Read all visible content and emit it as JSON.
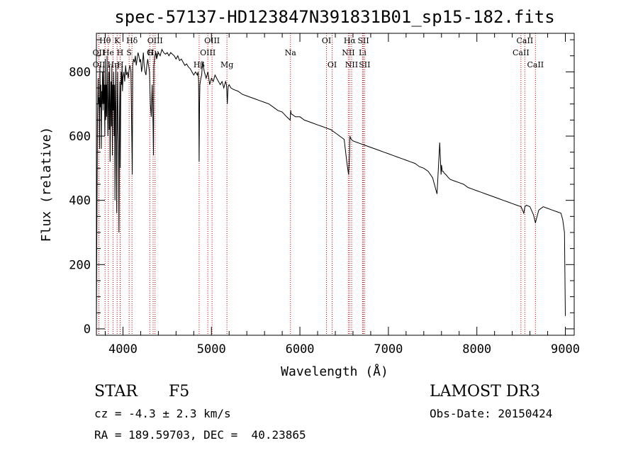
{
  "chart_data": {
    "type": "line",
    "title": "spec-57137-HD123847N391831B01_sp15-182.fits",
    "xlabel": "Wavelength (Å)",
    "ylabel": "Flux (relative)",
    "xlim": [
      3700,
      9100
    ],
    "ylim": [
      -20,
      920
    ],
    "xticks": [
      4000,
      5000,
      6000,
      7000,
      8000,
      9000
    ],
    "yticks": [
      0,
      200,
      400,
      600,
      800
    ],
    "series": [
      {
        "name": "flux",
        "x": [
          3700,
          3705,
          3712,
          3720,
          3725,
          3730,
          3735,
          3740,
          3745,
          3750,
          3755,
          3760,
          3765,
          3770,
          3775,
          3780,
          3785,
          3790,
          3795,
          3800,
          3805,
          3810,
          3815,
          3820,
          3825,
          3830,
          3835,
          3840,
          3845,
          3850,
          3855,
          3860,
          3865,
          3870,
          3875,
          3880,
          3885,
          3890,
          3895,
          3900,
          3905,
          3910,
          3915,
          3920,
          3925,
          3930,
          3935,
          3940,
          3945,
          3950,
          3955,
          3960,
          3965,
          3970,
          3975,
          3980,
          3985,
          3990,
          3995,
          4000,
          4010,
          4020,
          4030,
          4040,
          4050,
          4060,
          4070,
          4080,
          4090,
          4100,
          4105,
          4110,
          4120,
          4130,
          4140,
          4150,
          4160,
          4170,
          4180,
          4190,
          4200,
          4210,
          4220,
          4230,
          4240,
          4250,
          4260,
          4270,
          4280,
          4290,
          4300,
          4310,
          4320,
          4330,
          4340,
          4345,
          4350,
          4360,
          4370,
          4380,
          4400,
          4420,
          4440,
          4460,
          4480,
          4500,
          4520,
          4540,
          4560,
          4580,
          4600,
          4620,
          4640,
          4660,
          4680,
          4700,
          4720,
          4740,
          4760,
          4780,
          4800,
          4820,
          4840,
          4850,
          4855,
          4861,
          4866,
          4870,
          4880,
          4890,
          4900,
          4920,
          4940,
          4960,
          4980,
          5000,
          5020,
          5040,
          5060,
          5080,
          5100,
          5120,
          5140,
          5160,
          5170,
          5175,
          5180,
          5185,
          5190,
          5200,
          5220,
          5250,
          5300,
          5350,
          5400,
          5450,
          5500,
          5550,
          5600,
          5650,
          5700,
          5750,
          5800,
          5850,
          5890,
          5893,
          5896,
          5900,
          5950,
          6000,
          6050,
          6100,
          6150,
          6200,
          6250,
          6300,
          6350,
          6400,
          6450,
          6500,
          6530,
          6550,
          6560,
          6563,
          6566,
          6570,
          6580,
          6600,
          6650,
          6700,
          6750,
          6800,
          6850,
          6900,
          6950,
          7000,
          7050,
          7100,
          7150,
          7200,
          7250,
          7300,
          7350,
          7400,
          7450,
          7500,
          7550,
          7580,
          7595,
          7600,
          7605,
          7610,
          7620,
          7630,
          7650,
          7680,
          7700,
          7750,
          7800,
          7850,
          7900,
          7950,
          8000,
          8050,
          8100,
          8150,
          8200,
          8250,
          8300,
          8350,
          8400,
          8450,
          8500,
          8530,
          8542,
          8560,
          8600,
          8640,
          8662,
          8680,
          8700,
          8750,
          8800,
          8850,
          8900,
          8950,
          8970,
          8990,
          9000
        ],
        "y": [
          0,
          300,
          650,
          780,
          700,
          720,
          560,
          820,
          690,
          760,
          560,
          740,
          700,
          800,
          680,
          820,
          700,
          760,
          600,
          840,
          650,
          760,
          660,
          850,
          720,
          600,
          700,
          800,
          620,
          820,
          520,
          700,
          770,
          630,
          820,
          540,
          760,
          680,
          800,
          600,
          760,
          400,
          700,
          820,
          540,
          360,
          660,
          800,
          620,
          580,
          300,
          650,
          770,
          500,
          720,
          800,
          760,
          820,
          740,
          780,
          800,
          770,
          820,
          790,
          800,
          780,
          810,
          820,
          800,
          600,
          480,
          820,
          840,
          830,
          850,
          820,
          840,
          860,
          850,
          830,
          840,
          800,
          820,
          860,
          820,
          800,
          790,
          820,
          840,
          820,
          800,
          700,
          660,
          760,
          640,
          540,
          820,
          850,
          860,
          840,
          860,
          850,
          870,
          860,
          855,
          860,
          850,
          860,
          855,
          850,
          840,
          850,
          835,
          840,
          830,
          820,
          825,
          815,
          810,
          800,
          790,
          800,
          790,
          800,
          770,
          520,
          700,
          760,
          780,
          790,
          830,
          800,
          780,
          800,
          760,
          780,
          770,
          790,
          780,
          770,
          760,
          770,
          750,
          770,
          760,
          730,
          700,
          740,
          755,
          760,
          750,
          745,
          740,
          730,
          725,
          720,
          715,
          710,
          705,
          700,
          690,
          680,
          675,
          660,
          650,
          665,
          680,
          670,
          660,
          660,
          650,
          645,
          640,
          635,
          630,
          625,
          620,
          610,
          600,
          590,
          520,
          480,
          540,
          580,
          600,
          595,
          590,
          585,
          580,
          575,
          570,
          565,
          560,
          555,
          550,
          545,
          540,
          535,
          530,
          525,
          520,
          515,
          505,
          500,
          490,
          470,
          420,
          580,
          480,
          510,
          500,
          490,
          490,
          485,
          480,
          470,
          465,
          460,
          455,
          450,
          440,
          435,
          430,
          425,
          420,
          415,
          410,
          405,
          400,
          395,
          390,
          385,
          380,
          360,
          380,
          385,
          380,
          355,
          330,
          350,
          370,
          380,
          375,
          370,
          365,
          360,
          340,
          300,
          40
        ]
      }
    ],
    "reference_lines": [
      {
        "label": "Hθ",
        "wavelength": 3798,
        "label_row": 1
      },
      {
        "label": "OII",
        "wavelength": 3727,
        "label_row": 2
      },
      {
        "label": "OII",
        "wavelength": 3729,
        "label_row": 3
      },
      {
        "label": "He",
        "wavelength": 3835,
        "label_row": 2
      },
      {
        "label": "Hη",
        "wavelength": 3889,
        "label_row": 3
      },
      {
        "label": "K",
        "wavelength": 3934,
        "label_row": 1
      },
      {
        "label": "H",
        "wavelength": 3968,
        "label_row": 2
      },
      {
        "label": "H",
        "wavelength": 3970,
        "label_row": 3
      },
      {
        "label": "Hδ",
        "wavelength": 4102,
        "label_row": 1
      },
      {
        "label": "S",
        "wavelength": 4070,
        "label_row": 2
      },
      {
        "label": "OIII",
        "wavelength": 4363,
        "label_row": 1
      },
      {
        "label": "G",
        "wavelength": 4304,
        "label_row": 2
      },
      {
        "label": "Hγ",
        "wavelength": 4341,
        "label_row": 2
      },
      {
        "label": "OIII",
        "wavelength": 5007,
        "label_row": 1
      },
      {
        "label": "OIII",
        "wavelength": 4959,
        "label_row": 2
      },
      {
        "label": "Hβ",
        "wavelength": 4861,
        "label_row": 3
      },
      {
        "label": "Mg",
        "wavelength": 5175,
        "label_row": 3
      },
      {
        "label": "Na",
        "wavelength": 5893,
        "label_row": 2
      },
      {
        "label": "OI",
        "wavelength": 6300,
        "label_row": 1
      },
      {
        "label": "OI",
        "wavelength": 6364,
        "label_row": 3
      },
      {
        "label": "Hα",
        "wavelength": 6563,
        "label_row": 1
      },
      {
        "label": "NII",
        "wavelength": 6548,
        "label_row": 2
      },
      {
        "label": "NII",
        "wavelength": 6584,
        "label_row": 3
      },
      {
        "label": "SII",
        "wavelength": 6717,
        "label_row": 1
      },
      {
        "label": "Li",
        "wavelength": 6708,
        "label_row": 2
      },
      {
        "label": "SII",
        "wavelength": 6731,
        "label_row": 3
      },
      {
        "label": "CaII",
        "wavelength": 8542,
        "label_row": 1
      },
      {
        "label": "CaII",
        "wavelength": 8498,
        "label_row": 2
      },
      {
        "label": "CaII",
        "wavelength": 8662,
        "label_row": 3
      }
    ],
    "colors": {
      "line": "#000000",
      "reference": "#cc0000",
      "axis": "#000000",
      "background": "#ffffff"
    }
  },
  "info": {
    "object_class": "STAR",
    "subclass": "F5",
    "survey": "LAMOST DR3",
    "redshift": "cz = -4.3 ± 2.3 km/s",
    "obs_date": "Obs-Date: 20150424",
    "coords": "RA = 189.59703, DEC =  40.23865"
  }
}
